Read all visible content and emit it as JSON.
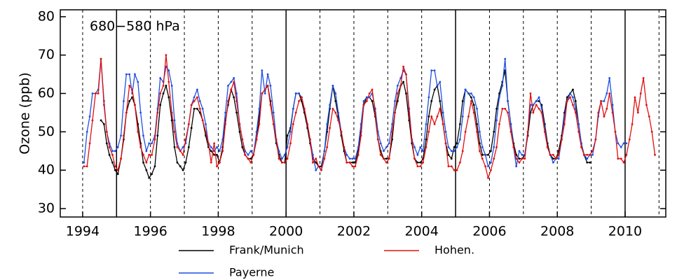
{
  "chart_data": {
    "type": "line",
    "annotation": "680−580 hPa",
    "y_label": "Ozone (ppb)",
    "xlim": [
      1993.34,
      2011.2
    ],
    "ylim": [
      27.8,
      81.8
    ],
    "xticks": [
      1994,
      1996,
      1998,
      2000,
      2002,
      2004,
      2006,
      2008,
      2010
    ],
    "yticks": [
      30,
      40,
      50,
      60,
      70,
      80
    ],
    "grid_dashed": [
      1994,
      1996,
      1997,
      1998,
      1999,
      2001,
      2002,
      2003,
      2004,
      2006,
      2007,
      2008,
      2009,
      2011
    ],
    "grid_solid": [
      1995,
      2000,
      2005,
      2010
    ],
    "x": [
      1994.04,
      1994.13,
      1994.21,
      1994.29,
      1994.38,
      1994.46,
      1994.54,
      1994.63,
      1994.71,
      1994.79,
      1994.88,
      1994.96,
      1995.04,
      1995.13,
      1995.21,
      1995.29,
      1995.38,
      1995.46,
      1995.54,
      1995.63,
      1995.71,
      1995.79,
      1995.88,
      1995.96,
      1996.04,
      1996.13,
      1996.21,
      1996.29,
      1996.38,
      1996.46,
      1996.54,
      1996.63,
      1996.71,
      1996.79,
      1996.88,
      1996.96,
      1997.04,
      1997.13,
      1997.21,
      1997.29,
      1997.38,
      1997.46,
      1997.54,
      1997.63,
      1997.71,
      1997.79,
      1997.88,
      1997.96,
      1998.04,
      1998.13,
      1998.21,
      1998.29,
      1998.38,
      1998.46,
      1998.54,
      1998.63,
      1998.71,
      1998.79,
      1998.88,
      1998.96,
      1999.04,
      1999.13,
      1999.21,
      1999.29,
      1999.38,
      1999.46,
      1999.54,
      1999.63,
      1999.71,
      1999.79,
      1999.88,
      1999.96,
      2000.04,
      2000.13,
      2000.21,
      2000.29,
      2000.38,
      2000.46,
      2000.54,
      2000.63,
      2000.71,
      2000.79,
      2000.88,
      2000.96,
      2001.04,
      2001.13,
      2001.21,
      2001.29,
      2001.38,
      2001.46,
      2001.54,
      2001.63,
      2001.71,
      2001.79,
      2001.88,
      2001.96,
      2002.04,
      2002.13,
      2002.21,
      2002.29,
      2002.38,
      2002.46,
      2002.54,
      2002.63,
      2002.71,
      2002.79,
      2002.88,
      2002.96,
      2003.04,
      2003.13,
      2003.21,
      2003.29,
      2003.38,
      2003.46,
      2003.54,
      2003.63,
      2003.71,
      2003.79,
      2003.88,
      2003.96,
      2004.04,
      2004.13,
      2004.21,
      2004.29,
      2004.38,
      2004.46,
      2004.54,
      2004.63,
      2004.71,
      2004.79,
      2004.88,
      2004.96,
      2005.04,
      2005.13,
      2005.21,
      2005.29,
      2005.38,
      2005.46,
      2005.54,
      2005.63,
      2005.71,
      2005.79,
      2005.88,
      2005.96,
      2006.04,
      2006.13,
      2006.21,
      2006.29,
      2006.38,
      2006.46,
      2006.54,
      2006.63,
      2006.71,
      2006.79,
      2006.88,
      2006.96,
      2007.04,
      2007.13,
      2007.21,
      2007.29,
      2007.38,
      2007.46,
      2007.54,
      2007.63,
      2007.71,
      2007.79,
      2007.88,
      2007.96,
      2008.04,
      2008.13,
      2008.21,
      2008.29,
      2008.38,
      2008.46,
      2008.54,
      2008.63,
      2008.71,
      2008.79,
      2008.88,
      2008.96,
      2009.04,
      2009.13,
      2009.21,
      2009.29,
      2009.38,
      2009.46,
      2009.54,
      2009.63,
      2009.71,
      2009.79,
      2009.88,
      2009.96,
      2010.04,
      2010.13,
      2010.21,
      2010.29,
      2010.38,
      2010.46,
      2010.54,
      2010.63,
      2010.71,
      2010.79,
      2010.88,
      2010.96
    ],
    "series": [
      {
        "name": "Frank/Munich",
        "color": "#000000",
        "values": [
          null,
          null,
          null,
          null,
          null,
          null,
          53,
          52,
          47,
          44,
          42,
          40,
          39,
          43,
          48,
          55,
          58,
          59,
          57,
          52,
          47,
          42,
          40,
          38,
          39,
          41,
          49,
          57,
          60,
          62,
          59,
          53,
          46,
          42,
          41,
          40,
          42,
          46,
          51,
          56,
          56,
          55,
          53,
          49,
          46,
          45,
          44,
          44,
          42,
          46,
          53,
          57,
          61,
          59,
          55,
          50,
          46,
          44,
          43,
          43,
          44,
          48,
          54,
          60,
          61,
          62,
          58,
          52,
          47,
          44,
          42,
          42,
          49,
          51,
          56,
          60,
          60,
          58,
          55,
          51,
          47,
          43,
          42,
          41,
          41,
          45,
          50,
          56,
          62,
          58,
          54,
          49,
          45,
          42,
          42,
          42,
          42,
          45,
          50,
          57,
          59,
          59,
          58,
          54,
          48,
          45,
          43,
          43,
          43,
          48,
          55,
          58,
          62,
          63,
          60,
          53,
          47,
          43,
          42,
          42,
          43,
          48,
          54,
          58,
          61,
          62,
          58,
          52,
          47,
          44,
          43,
          46,
          47,
          52,
          58,
          61,
          60,
          59,
          57,
          52,
          47,
          44,
          44,
          44,
          45,
          50,
          56,
          60,
          63,
          66,
          58,
          52,
          47,
          44,
          43,
          43,
          44,
          49,
          55,
          57,
          58,
          58,
          57,
          52,
          47,
          44,
          43,
          43,
          45,
          49,
          55,
          59,
          60,
          61,
          58,
          52,
          47,
          44,
          42,
          42,
          null,
          null,
          null,
          null,
          null,
          null,
          null,
          null,
          null,
          null,
          null,
          null,
          null,
          null,
          null,
          null,
          null,
          null,
          null,
          null,
          null,
          null,
          null,
          null
        ]
      },
      {
        "name": "Payerne",
        "color": "#1f4fe0",
        "values": [
          42,
          50,
          54,
          60,
          60,
          61,
          69,
          58,
          50,
          47,
          45,
          45,
          46,
          49,
          58,
          65,
          65,
          60,
          65,
          63,
          55,
          49,
          45,
          47,
          47,
          49,
          56,
          64,
          63,
          67,
          66,
          62,
          53,
          47,
          45,
          46,
          47,
          52,
          57,
          59,
          61,
          58,
          56,
          52,
          47,
          46,
          45,
          46,
          45,
          48,
          55,
          62,
          63,
          64,
          60,
          52,
          48,
          45,
          44,
          45,
          44,
          50,
          56,
          66,
          60,
          65,
          62,
          55,
          48,
          45,
          43,
          44,
          46,
          50,
          56,
          60,
          60,
          59,
          56,
          52,
          48,
          44,
          40,
          41,
          40,
          45,
          52,
          57,
          62,
          60,
          55,
          50,
          46,
          44,
          43,
          43,
          43,
          46,
          52,
          58,
          59,
          59,
          60,
          56,
          50,
          47,
          45,
          46,
          47,
          52,
          58,
          62,
          64,
          66,
          65,
          56,
          48,
          46,
          44,
          46,
          45,
          52,
          59,
          66,
          66,
          62,
          63,
          55,
          50,
          46,
          45,
          45,
          46,
          48,
          54,
          61,
          60,
          60,
          59,
          56,
          50,
          46,
          44,
          41,
          42,
          46,
          53,
          59,
          62,
          69,
          58,
          52,
          46,
          41,
          45,
          44,
          44,
          50,
          57,
          57,
          58,
          59,
          56,
          51,
          46,
          44,
          42,
          43,
          43,
          48,
          54,
          58,
          60,
          59,
          56,
          52,
          47,
          44,
          43,
          44,
          44,
          48,
          54,
          58,
          58,
          60,
          64,
          57,
          50,
          47,
          46,
          47,
          47,
          null,
          null,
          null,
          null,
          null,
          null,
          null,
          null,
          null,
          null,
          null
        ]
      },
      {
        "name": "Hohen.",
        "color": "#e01010",
        "values": [
          41,
          41,
          47,
          53,
          60,
          60,
          69,
          57,
          50,
          46,
          44,
          41,
          40,
          43,
          49,
          55,
          62,
          61,
          57,
          50,
          46,
          44,
          42,
          44,
          44,
          48,
          55,
          60,
          62,
          70,
          63,
          55,
          50,
          46,
          45,
          44,
          48,
          52,
          57,
          58,
          59,
          56,
          53,
          50,
          47,
          42,
          47,
          41,
          42,
          45,
          52,
          58,
          61,
          63,
          58,
          52,
          48,
          44,
          43,
          42,
          44,
          48,
          52,
          60,
          61,
          62,
          57,
          52,
          48,
          43,
          42,
          42,
          43,
          47,
          52,
          55,
          58,
          59,
          56,
          52,
          48,
          42,
          43,
          41,
          40,
          43,
          46,
          51,
          56,
          55,
          53,
          50,
          46,
          42,
          42,
          41,
          41,
          44,
          49,
          57,
          58,
          60,
          61,
          55,
          48,
          44,
          43,
          42,
          43,
          50,
          55,
          60,
          62,
          67,
          65,
          55,
          48,
          43,
          41,
          41,
          42,
          46,
          50,
          54,
          52,
          54,
          56,
          52,
          47,
          41,
          41,
          40,
          40,
          42,
          45,
          50,
          54,
          58,
          55,
          50,
          45,
          43,
          41,
          38,
          40,
          43,
          46,
          52,
          56,
          56,
          55,
          50,
          46,
          43,
          42,
          43,
          43,
          50,
          60,
          55,
          57,
          56,
          55,
          50,
          46,
          44,
          44,
          43,
          44,
          48,
          52,
          58,
          59,
          57,
          55,
          50,
          46,
          44,
          44,
          44,
          45,
          48,
          55,
          58,
          54,
          56,
          60,
          55,
          50,
          43,
          43,
          42,
          44,
          48,
          52,
          59,
          55,
          60,
          64,
          57,
          54,
          50,
          44,
          null
        ]
      }
    ]
  }
}
